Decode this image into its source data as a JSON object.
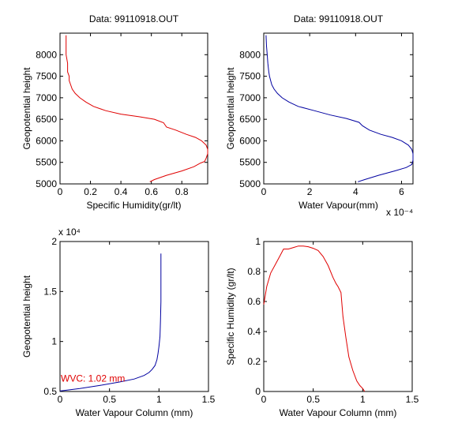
{
  "chart_data": [
    {
      "id": "top-left",
      "type": "line",
      "title": "Data: 99110918.OUT",
      "xlabel": "Specific Humidity(gr/lt)",
      "ylabel": "Geopotential height",
      "xlim": [
        0,
        0.97
      ],
      "ylim": [
        5000,
        8500
      ],
      "xticks": [
        0,
        0.2,
        0.4,
        0.6,
        0.8
      ],
      "xtick_labels": [
        "0",
        "0.2",
        "0.4",
        "0.6",
        "0.8"
      ],
      "yticks": [
        5000,
        5500,
        6000,
        6500,
        7000,
        7500,
        8000
      ],
      "ytick_labels": [
        "5000",
        "5500",
        "6000",
        "6500",
        "7000",
        "7500",
        "8000"
      ],
      "color": "#e00000",
      "series": [
        {
          "x": [
            0.59,
            0.62,
            0.7,
            0.8,
            0.88,
            0.92,
            0.95,
            0.96,
            0.97,
            0.97,
            0.96,
            0.93,
            0.89,
            0.83,
            0.76,
            0.7,
            0.68,
            0.62,
            0.52,
            0.4,
            0.3,
            0.22,
            0.17,
            0.13,
            0.1,
            0.08,
            0.07,
            0.06,
            0.06,
            0.05,
            0.05,
            0.04,
            0.04,
            0.04
          ],
          "y": [
            5050,
            5100,
            5200,
            5300,
            5400,
            5480,
            5520,
            5600,
            5700,
            5800,
            5900,
            6000,
            6080,
            6150,
            6250,
            6320,
            6420,
            6500,
            6560,
            6620,
            6700,
            6800,
            6900,
            7000,
            7100,
            7200,
            7300,
            7400,
            7500,
            7600,
            7800,
            8000,
            8200,
            8450
          ]
        }
      ]
    },
    {
      "id": "top-right",
      "type": "line",
      "title": "Data: 99110918.OUT",
      "xlabel": "Water Vapour(mm)",
      "ylabel": "Geopotential height",
      "xlim": [
        0,
        6.5
      ],
      "ylim": [
        5000,
        8500
      ],
      "x_exponent": "x 10⁻⁴",
      "xticks": [
        0,
        2,
        4,
        6
      ],
      "xtick_labels": [
        "0",
        "2",
        "4",
        "6"
      ],
      "yticks": [
        5000,
        5500,
        6000,
        6500,
        7000,
        7500,
        8000
      ],
      "ytick_labels": [
        "5000",
        "5500",
        "6000",
        "6500",
        "7000",
        "7500",
        "8000"
      ],
      "color": "#0000a0",
      "series": [
        {
          "x": [
            4.1,
            4.4,
            5.0,
            5.7,
            6.2,
            6.45,
            6.5,
            6.5,
            6.45,
            6.3,
            6.0,
            5.6,
            5.1,
            4.6,
            4.3,
            4.15,
            3.6,
            2.9,
            2.2,
            1.5,
            1.1,
            0.8,
            0.6,
            0.45,
            0.35,
            0.3,
            0.25,
            0.22,
            0.2,
            0.18,
            0.15,
            0.12,
            0.1
          ],
          "y": [
            5050,
            5100,
            5200,
            5300,
            5380,
            5450,
            5550,
            5700,
            5800,
            5900,
            6000,
            6080,
            6150,
            6250,
            6350,
            6430,
            6520,
            6600,
            6700,
            6800,
            6900,
            7000,
            7100,
            7200,
            7300,
            7400,
            7500,
            7600,
            7700,
            7800,
            8000,
            8200,
            8450
          ]
        }
      ]
    },
    {
      "id": "bottom-left",
      "type": "line",
      "title": "",
      "xlabel": "Water Vapour Column (mm)",
      "ylabel": "Geopotential height",
      "xlim": [
        0,
        1.5
      ],
      "ylim": [
        0.5,
        2.0
      ],
      "y_exponent": "x 10⁴",
      "xticks": [
        0,
        0.5,
        1,
        1.5
      ],
      "xtick_labels": [
        "0",
        "0.5",
        "1",
        "1.5"
      ],
      "yticks": [
        0.5,
        1.0,
        1.5,
        2.0
      ],
      "ytick_labels": [
        "0.5",
        "1",
        "1.5",
        "2"
      ],
      "color": "#0000a0",
      "annotation": {
        "text": "WVC: 1.02 mm",
        "color": "#e00000",
        "x": 0.0,
        "y": 0.63
      },
      "series": [
        {
          "x": [
            0.0,
            0.2,
            0.4,
            0.6,
            0.75,
            0.85,
            0.9,
            0.93,
            0.96,
            0.98,
            0.99,
            1.0,
            1.01,
            1.015,
            1.02,
            1.02,
            1.02
          ],
          "y": [
            0.505,
            0.53,
            0.56,
            0.595,
            0.625,
            0.66,
            0.69,
            0.72,
            0.76,
            0.82,
            0.88,
            0.95,
            1.05,
            1.2,
            1.4,
            1.6,
            1.88
          ]
        }
      ]
    },
    {
      "id": "bottom-right",
      "type": "line",
      "title": "",
      "xlabel": "Water Vapour Column (mm)",
      "ylabel": "Specific Humidity (gr/lt)",
      "xlim": [
        0,
        1.5
      ],
      "ylim": [
        0,
        1.0
      ],
      "xticks": [
        0,
        0.5,
        1,
        1.5
      ],
      "xtick_labels": [
        "0",
        "0.5",
        "1",
        "1.5"
      ],
      "yticks": [
        0,
        0.2,
        0.4,
        0.6,
        0.8,
        1.0
      ],
      "ytick_labels": [
        "0",
        "0.2",
        "0.4",
        "0.6",
        "0.8",
        "1"
      ],
      "color": "#e00000",
      "series": [
        {
          "x": [
            0.0,
            0.03,
            0.07,
            0.12,
            0.16,
            0.2,
            0.25,
            0.3,
            0.35,
            0.4,
            0.45,
            0.5,
            0.55,
            0.6,
            0.65,
            0.7,
            0.73,
            0.75,
            0.78,
            0.8,
            0.83,
            0.86,
            0.9,
            0.94,
            0.97,
            1.0,
            1.01,
            1.02
          ],
          "y": [
            0.58,
            0.7,
            0.79,
            0.85,
            0.9,
            0.95,
            0.95,
            0.96,
            0.97,
            0.97,
            0.965,
            0.955,
            0.94,
            0.9,
            0.84,
            0.76,
            0.72,
            0.7,
            0.66,
            0.5,
            0.36,
            0.23,
            0.14,
            0.07,
            0.04,
            0.02,
            0.01,
            0.0
          ]
        }
      ]
    }
  ]
}
